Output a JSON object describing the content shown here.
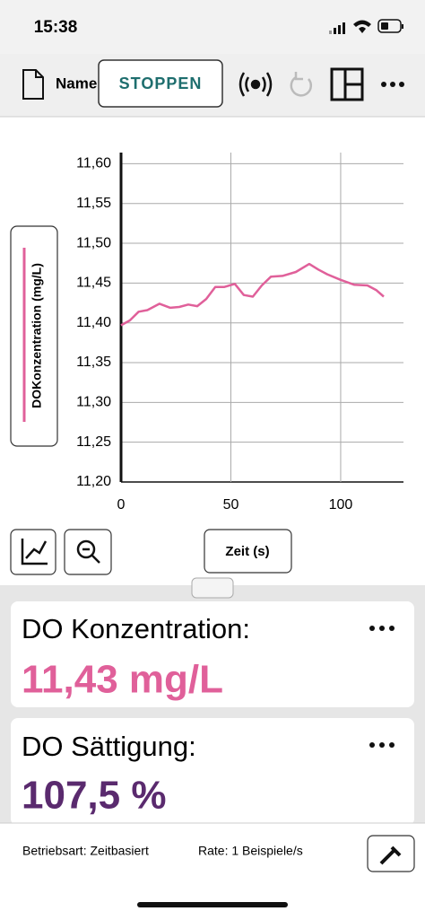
{
  "status": {
    "time": "15:38"
  },
  "toolbar": {
    "name": "Name",
    "button": "STOPPEN"
  },
  "chart_data": {
    "type": "line",
    "x": [
      0,
      4,
      8,
      12,
      17.5,
      22.4,
      26.5,
      30.6,
      34.7,
      38.8,
      42.9,
      46.9,
      51.8,
      55.9,
      60,
      64.1,
      68.2,
      73.5,
      79.6,
      85.7,
      89.8,
      93.9,
      100,
      106.1,
      112.2,
      116.3,
      119.6
    ],
    "series": [
      {
        "name": "DOKonzentration (mg/L)",
        "color": "#e0609a",
        "values": [
          11.397,
          11.403,
          11.414,
          11.416,
          11.424,
          11.419,
          11.42,
          11.423,
          11.421,
          11.43,
          11.445,
          11.445,
          11.449,
          11.435,
          11.433,
          11.447,
          11.458,
          11.459,
          11.464,
          11.474,
          11.467,
          11.461,
          11.454,
          11.448,
          11.447,
          11.441,
          11.433
        ]
      }
    ],
    "x_label": "Zeit (s)",
    "xlim": [
      0,
      128.6
    ],
    "xticks": [
      0,
      50,
      100
    ],
    "ylim": [
      11.2,
      11.614
    ],
    "yticks": [
      {
        "value": 11.2,
        "label": "11,20"
      },
      {
        "value": 11.25,
        "label": "11,25"
      },
      {
        "value": 11.3,
        "label": "11,30"
      },
      {
        "value": 11.35,
        "label": "11,35"
      },
      {
        "value": 11.4,
        "label": "11,40"
      },
      {
        "value": 11.45,
        "label": "11,45"
      },
      {
        "value": 11.5,
        "label": "11,50"
      },
      {
        "value": 11.55,
        "label": "11,55"
      },
      {
        "value": 11.6,
        "label": "11,60"
      }
    ],
    "grid": true
  },
  "cards": [
    {
      "label": "DO Konzentration:",
      "value": "11,43 mg/L",
      "color": "#e0609a"
    },
    {
      "label": "DO Sättigung:",
      "value": "107,5 %",
      "color": "#5a2a6e"
    }
  ],
  "footer": {
    "mode": "Betriebsart: Zeitbasiert",
    "rate": "Rate: 1 Beispiele/s"
  }
}
